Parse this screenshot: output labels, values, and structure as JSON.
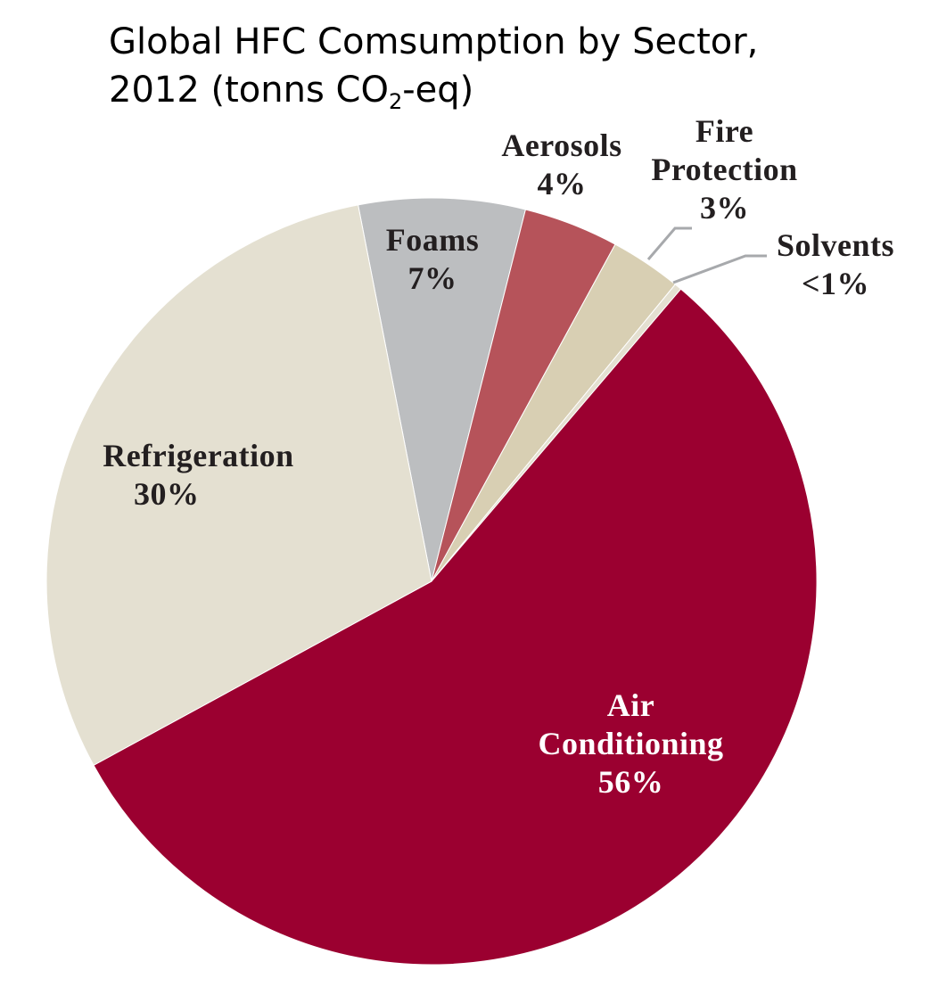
{
  "title": {
    "line1": "Global HFC Comsumption by Sector,",
    "line2_pre": "2012 (tonns CO",
    "line2_sub": "2",
    "line2_post": "-eq)"
  },
  "chart_data": {
    "type": "pie",
    "title": "Global HFC Comsumption by Sector, 2012 (tonns CO2-eq)",
    "start_angle_deg": -11,
    "direction": "clockwise",
    "slices": [
      {
        "label": "Foams",
        "value": 7,
        "display": "7%",
        "color": "#bcbec0"
      },
      {
        "label": "Aerosols",
        "value": 4,
        "display": "4%",
        "color": "#b6535a"
      },
      {
        "label": "Fire Protection",
        "value": 3,
        "display": "3%",
        "color": "#d8cfb3"
      },
      {
        "label": "Solvents",
        "value": 0.3,
        "display": "<1%",
        "color": "#e4e0d1"
      },
      {
        "label": "Air Conditioning",
        "value": 56,
        "display": "56%",
        "color": "#9b0030"
      },
      {
        "label": "Refrigeration",
        "value": 30,
        "display": "30%",
        "color": "#e4e0d1"
      }
    ],
    "legend": "none (direct labels)",
    "grid": false
  },
  "labels": {
    "foams": {
      "name": "Foams",
      "pct": "7%"
    },
    "aerosols": {
      "name": "Aerosols",
      "pct": "4%"
    },
    "fire": {
      "name1": "Fire",
      "name2": "Protection",
      "pct": "3%"
    },
    "solvents": {
      "name": "Solvents",
      "pct": "<1%"
    },
    "air": {
      "name1": "Air",
      "name2": "Conditioning",
      "pct": "56%"
    },
    "refrigeration": {
      "name": "Refrigeration",
      "pct": "30%"
    }
  }
}
